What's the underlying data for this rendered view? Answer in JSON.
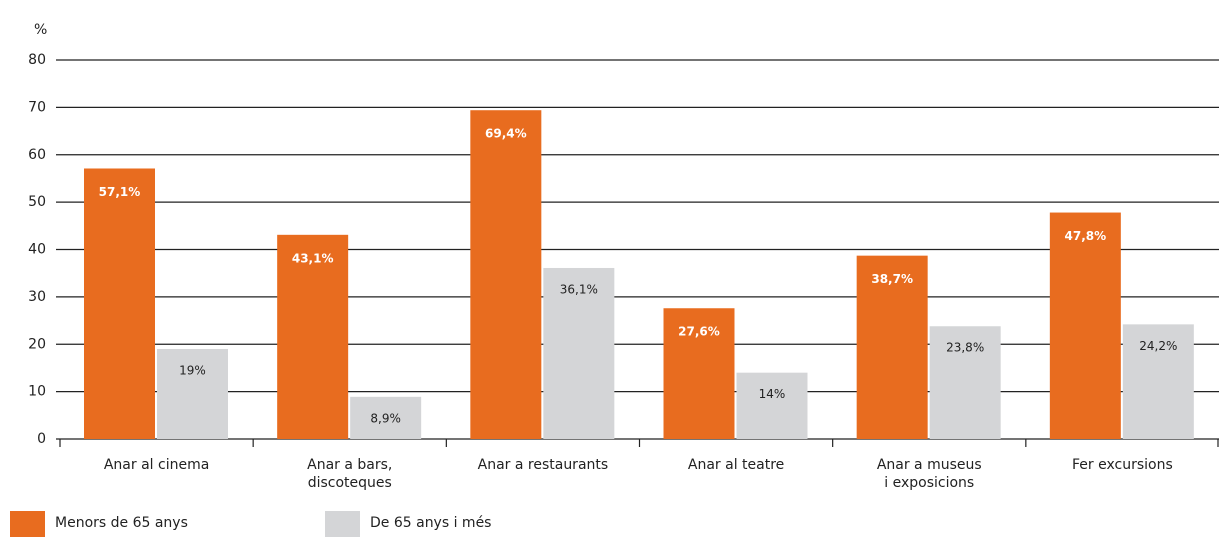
{
  "chart_data": {
    "type": "bar",
    "y_axis_label": "%",
    "categories": [
      "Anar al cinema",
      "Anar a bars,\ndiscoteques",
      "Anar a restaurants",
      "Anar al teatre",
      "Anar a museus\ni exposicions",
      "Fer excursions"
    ],
    "series": [
      {
        "name": "Menors de 65 anys",
        "color": "#e86c1f",
        "values": [
          57.1,
          43.1,
          69.4,
          27.6,
          38.7,
          47.8
        ],
        "value_labels": [
          "57,1%",
          "43,1%",
          "69,4%",
          "27,6%",
          "38,7%",
          "47,8%"
        ]
      },
      {
        "name": "De 65 anys i més",
        "color": "#d4d5d7",
        "values": [
          19,
          8.9,
          36.1,
          14,
          23.8,
          24.2
        ],
        "value_labels": [
          "19%",
          "8,9%",
          "36,1%",
          "14%",
          "23,8%",
          "24,2%"
        ]
      }
    ],
    "ylim": [
      0,
      80
    ],
    "yticks": [
      0,
      10,
      20,
      30,
      40,
      50,
      60,
      70,
      80
    ],
    "grid": true,
    "legend": "bottom-left"
  }
}
